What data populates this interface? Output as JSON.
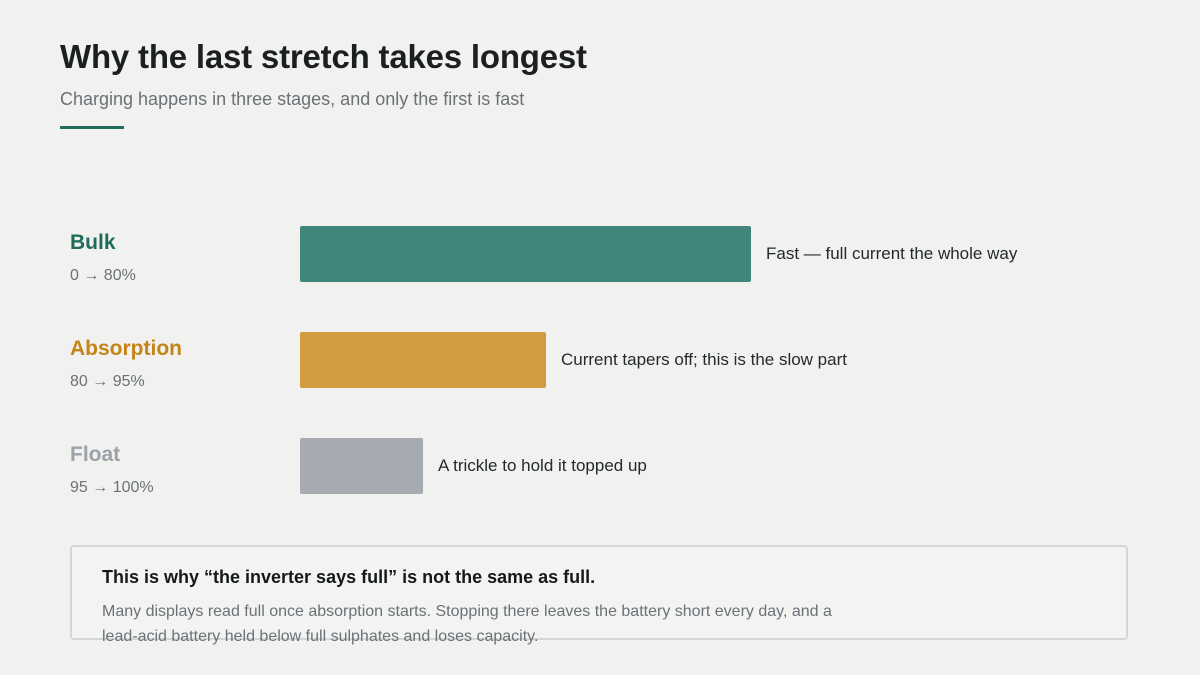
{
  "header": {
    "title": "Why the last stretch takes longest",
    "subtitle": "Charging happens in three stages, and only the first is fast"
  },
  "stages": [
    {
      "name": "Bulk",
      "range": "0 → 80%",
      "description": "Fast — full current the whole way",
      "color": "#42857a",
      "label_color": "#1f6b5c",
      "relative_duration": 1.0
    },
    {
      "name": "Absorption",
      "range": "80 → 95%",
      "description": "Current tapers off; this is the slow part",
      "color": "#d19b3e",
      "label_color": "#c58418",
      "relative_duration": 0.545
    },
    {
      "name": "Float",
      "range": "95 → 100%",
      "description": "A trickle to hold it topped up",
      "color": "#a5abb1",
      "label_color": "#9ba2a8",
      "relative_duration": 0.273
    }
  ],
  "note": {
    "title": "This is why “the inverter says full” is not the same as full.",
    "body": "Many displays read full once absorption starts. Stopping there leaves the battery short every day, and a lead-acid battery held below full sulphates and loses capacity."
  }
}
